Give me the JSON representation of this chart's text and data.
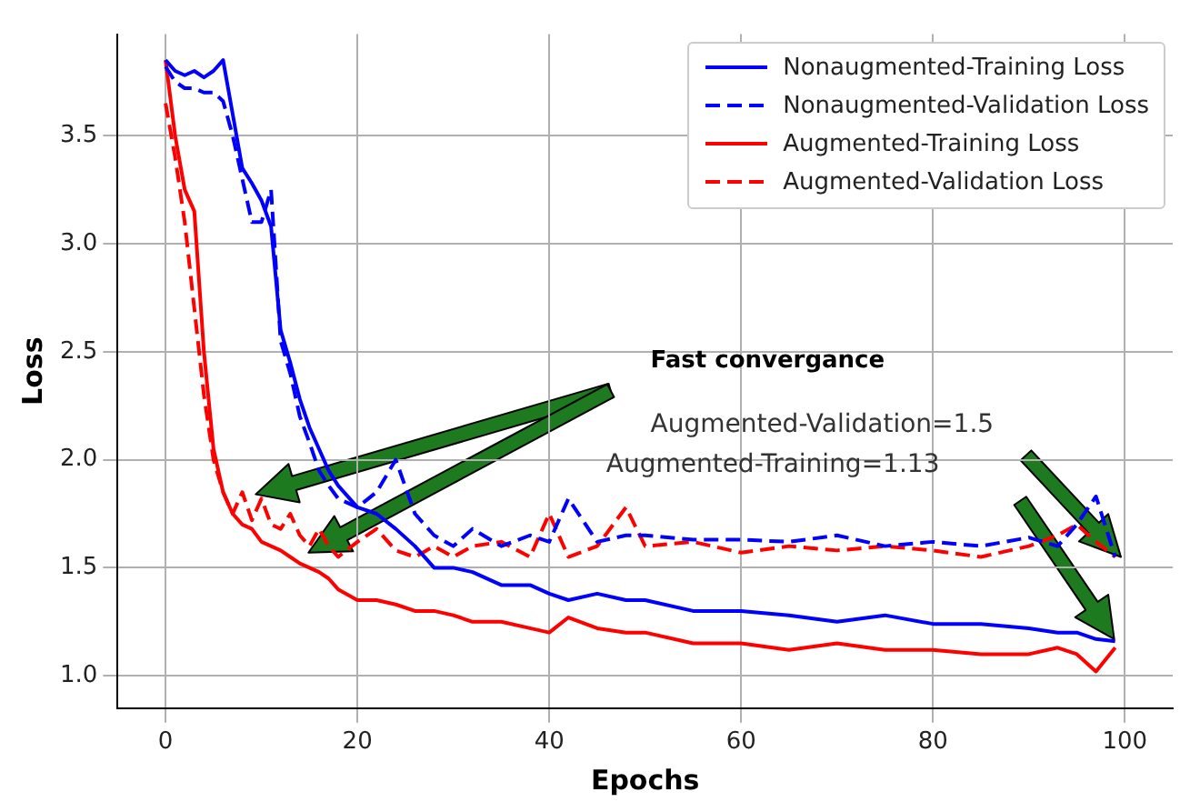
{
  "chart_data": {
    "type": "line",
    "xlabel": "Epochs",
    "ylabel": "Loss",
    "x": [
      0,
      1,
      2,
      3,
      4,
      5,
      6,
      7,
      8,
      9,
      10,
      11,
      12,
      13,
      14,
      15,
      16,
      17,
      18,
      20,
      22,
      24,
      26,
      28,
      30,
      32,
      35,
      38,
      40,
      42,
      45,
      48,
      50,
      55,
      60,
      65,
      70,
      75,
      80,
      85,
      90,
      93,
      95,
      97,
      99
    ],
    "series": [
      {
        "name": "Nonaugmented-Training Loss",
        "color": "#0000ff",
        "line_style": "solid",
        "values": [
          3.85,
          3.8,
          3.78,
          3.8,
          3.77,
          3.8,
          3.85,
          3.6,
          3.35,
          3.28,
          3.2,
          3.08,
          2.6,
          2.45,
          2.28,
          2.15,
          2.05,
          1.95,
          1.88,
          1.78,
          1.75,
          1.68,
          1.6,
          1.5,
          1.5,
          1.48,
          1.42,
          1.42,
          1.38,
          1.35,
          1.38,
          1.35,
          1.35,
          1.3,
          1.3,
          1.28,
          1.25,
          1.28,
          1.24,
          1.24,
          1.22,
          1.2,
          1.2,
          1.17,
          1.16
        ]
      },
      {
        "name": "Nonaugmented-Validation Loss",
        "color": "#0000ff",
        "line_style": "dashed",
        "values": [
          3.82,
          3.75,
          3.72,
          3.72,
          3.7,
          3.7,
          3.66,
          3.5,
          3.3,
          3.1,
          3.1,
          3.25,
          2.55,
          2.4,
          2.2,
          2.08,
          1.95,
          1.88,
          1.82,
          1.78,
          1.85,
          2.0,
          1.75,
          1.65,
          1.6,
          1.68,
          1.6,
          1.65,
          1.62,
          1.82,
          1.62,
          1.65,
          1.65,
          1.63,
          1.63,
          1.62,
          1.65,
          1.6,
          1.62,
          1.6,
          1.64,
          1.6,
          1.7,
          1.83,
          1.55
        ]
      },
      {
        "name": "Augmented-Training Loss",
        "color": "#ff0000",
        "line_style": "solid",
        "values": [
          3.85,
          3.5,
          3.25,
          3.15,
          2.5,
          2.05,
          1.85,
          1.75,
          1.7,
          1.68,
          1.62,
          1.6,
          1.58,
          1.55,
          1.52,
          1.5,
          1.48,
          1.45,
          1.4,
          1.35,
          1.35,
          1.33,
          1.3,
          1.3,
          1.28,
          1.25,
          1.25,
          1.22,
          1.2,
          1.27,
          1.22,
          1.2,
          1.2,
          1.15,
          1.15,
          1.12,
          1.15,
          1.12,
          1.12,
          1.1,
          1.1,
          1.13,
          1.1,
          1.02,
          1.13
        ]
      },
      {
        "name": "Augmented-Validation Loss",
        "color": "#ff0000",
        "line_style": "dashed",
        "values": [
          3.65,
          3.4,
          3.1,
          2.7,
          2.3,
          2.0,
          1.85,
          1.75,
          1.85,
          1.72,
          1.82,
          1.7,
          1.68,
          1.75,
          1.65,
          1.6,
          1.68,
          1.6,
          1.55,
          1.62,
          1.68,
          1.58,
          1.55,
          1.6,
          1.55,
          1.6,
          1.62,
          1.55,
          1.75,
          1.55,
          1.6,
          1.78,
          1.6,
          1.62,
          1.57,
          1.6,
          1.58,
          1.6,
          1.58,
          1.55,
          1.6,
          1.65,
          1.7,
          1.62,
          1.55
        ]
      }
    ],
    "xlim": [
      -5,
      105
    ],
    "xticks": [
      0,
      20,
      40,
      60,
      80,
      100
    ],
    "ylim": [
      0.85,
      3.97
    ],
    "yticks": [
      {
        "value": 1,
        "label": "1.0"
      },
      {
        "value": 1.5,
        "label": "1.5"
      },
      {
        "value": 2,
        "label": "2.0"
      },
      {
        "value": 2.5,
        "label": "2.5"
      },
      {
        "value": 3,
        "label": "3.0"
      },
      {
        "value": 3.5,
        "label": "3.5"
      }
    ],
    "grid": true,
    "legend": "top right",
    "marker": "none",
    "annotations": [
      "Fast convergance",
      "Augmented-Validation=1.5",
      "Augmented-Training=1.13"
    ]
  }
}
